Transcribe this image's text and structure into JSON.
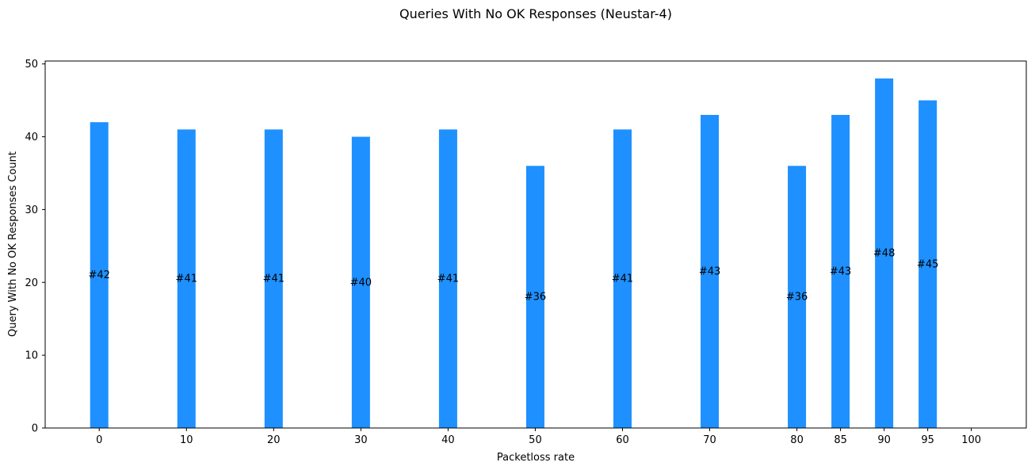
{
  "chart_data": {
    "type": "bar",
    "title": "Queries With No OK Responses (Neustar-4)",
    "xlabel": "Packetloss rate",
    "ylabel": "Query With No OK Responses Count",
    "x": [
      0,
      10,
      20,
      30,
      40,
      50,
      60,
      70,
      80,
      85,
      90,
      95
    ],
    "values": [
      42,
      41,
      41,
      40,
      41,
      36,
      41,
      43,
      36,
      43,
      48,
      45
    ],
    "bar_labels": [
      "#42",
      "#41",
      "#41",
      "#40",
      "#41",
      "#36",
      "#41",
      "#43",
      "#36",
      "#43",
      "#48",
      "#45"
    ],
    "xticks": [
      0,
      10,
      20,
      30,
      40,
      50,
      60,
      70,
      80,
      85,
      90,
      95,
      100
    ],
    "yticks": [
      0,
      10,
      20,
      30,
      40,
      50
    ],
    "xlim": [
      -6.2,
      106.3
    ],
    "ylim": [
      0,
      50.4
    ],
    "bar_color": "#1E90FF",
    "grid": false,
    "legend": "none"
  }
}
